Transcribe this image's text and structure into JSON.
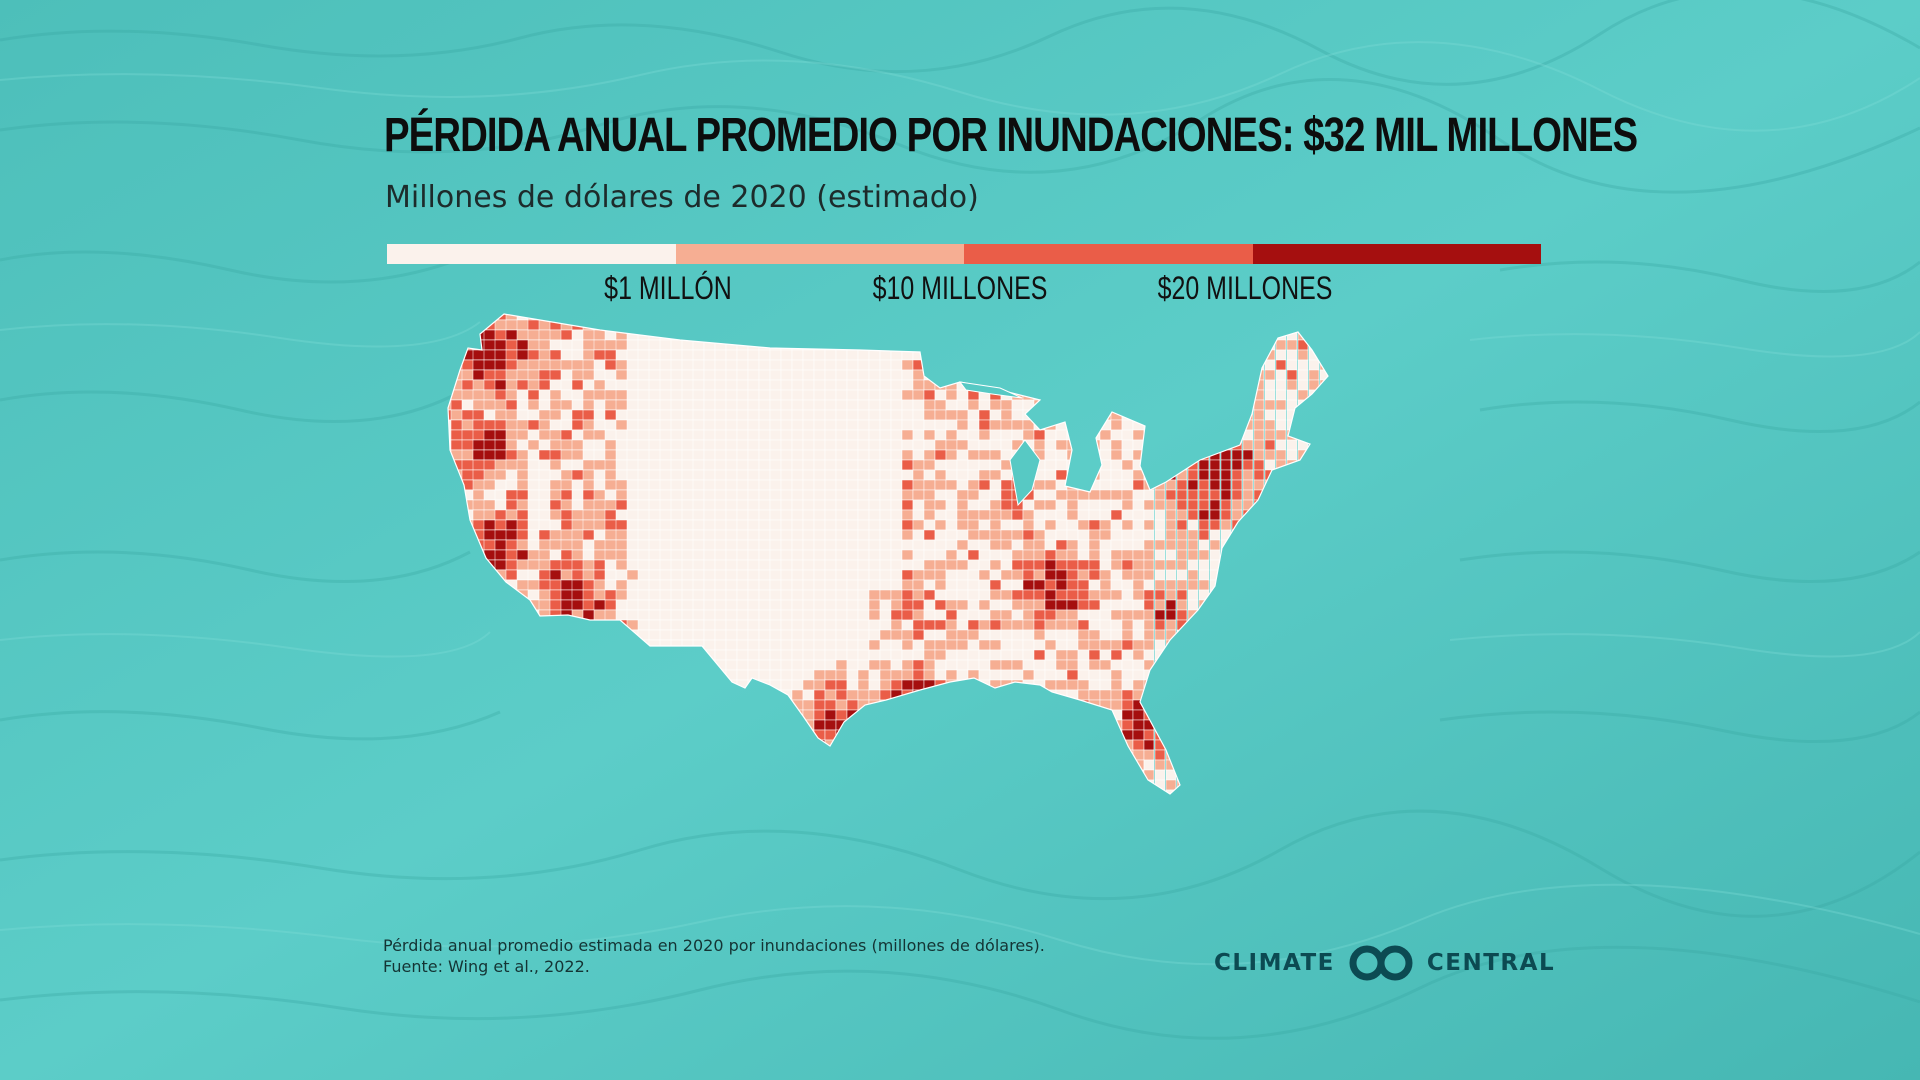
{
  "title": "PÉRDIDA ANUAL PROMEDIO POR INUNDACIONES: $32 MIL MILLONES",
  "subtitle": "Millones de dólares de 2020 (estimado)",
  "legend": {
    "colors": [
      "#fbf2ec",
      "#f6ae93",
      "#ea5d48",
      "#a50f0f"
    ],
    "labels": [
      "$1 MILLÓN",
      "$10 MILLONES",
      "$20 MILLONES"
    ]
  },
  "map": {
    "region": "Estados Unidos contiguos (condados)",
    "fill_border_color": "#ffffff",
    "hotspots_high_loss": [
      "Costa de Washington y Oregón",
      "Costa de California y Valle Central",
      "Sur de California y Arizona",
      "Costa del Golfo (Texas y Luisiana)",
      "Florida",
      "Apalaches (Virginia Occidental, Kentucky)",
      "Noreste (Pensilvania, Nueva York, Nueva Inglaterra)"
    ]
  },
  "footnote": {
    "line1": "Pérdida anual promedio estimada en 2020 por inundaciones (millones de dólares).",
    "line2": "Fuente: Wing et al., 2022."
  },
  "logo": {
    "left": "CLIMATE",
    "right": "CENTRAL",
    "color": "#0c4a52"
  },
  "background_color": "#57c9c4"
}
